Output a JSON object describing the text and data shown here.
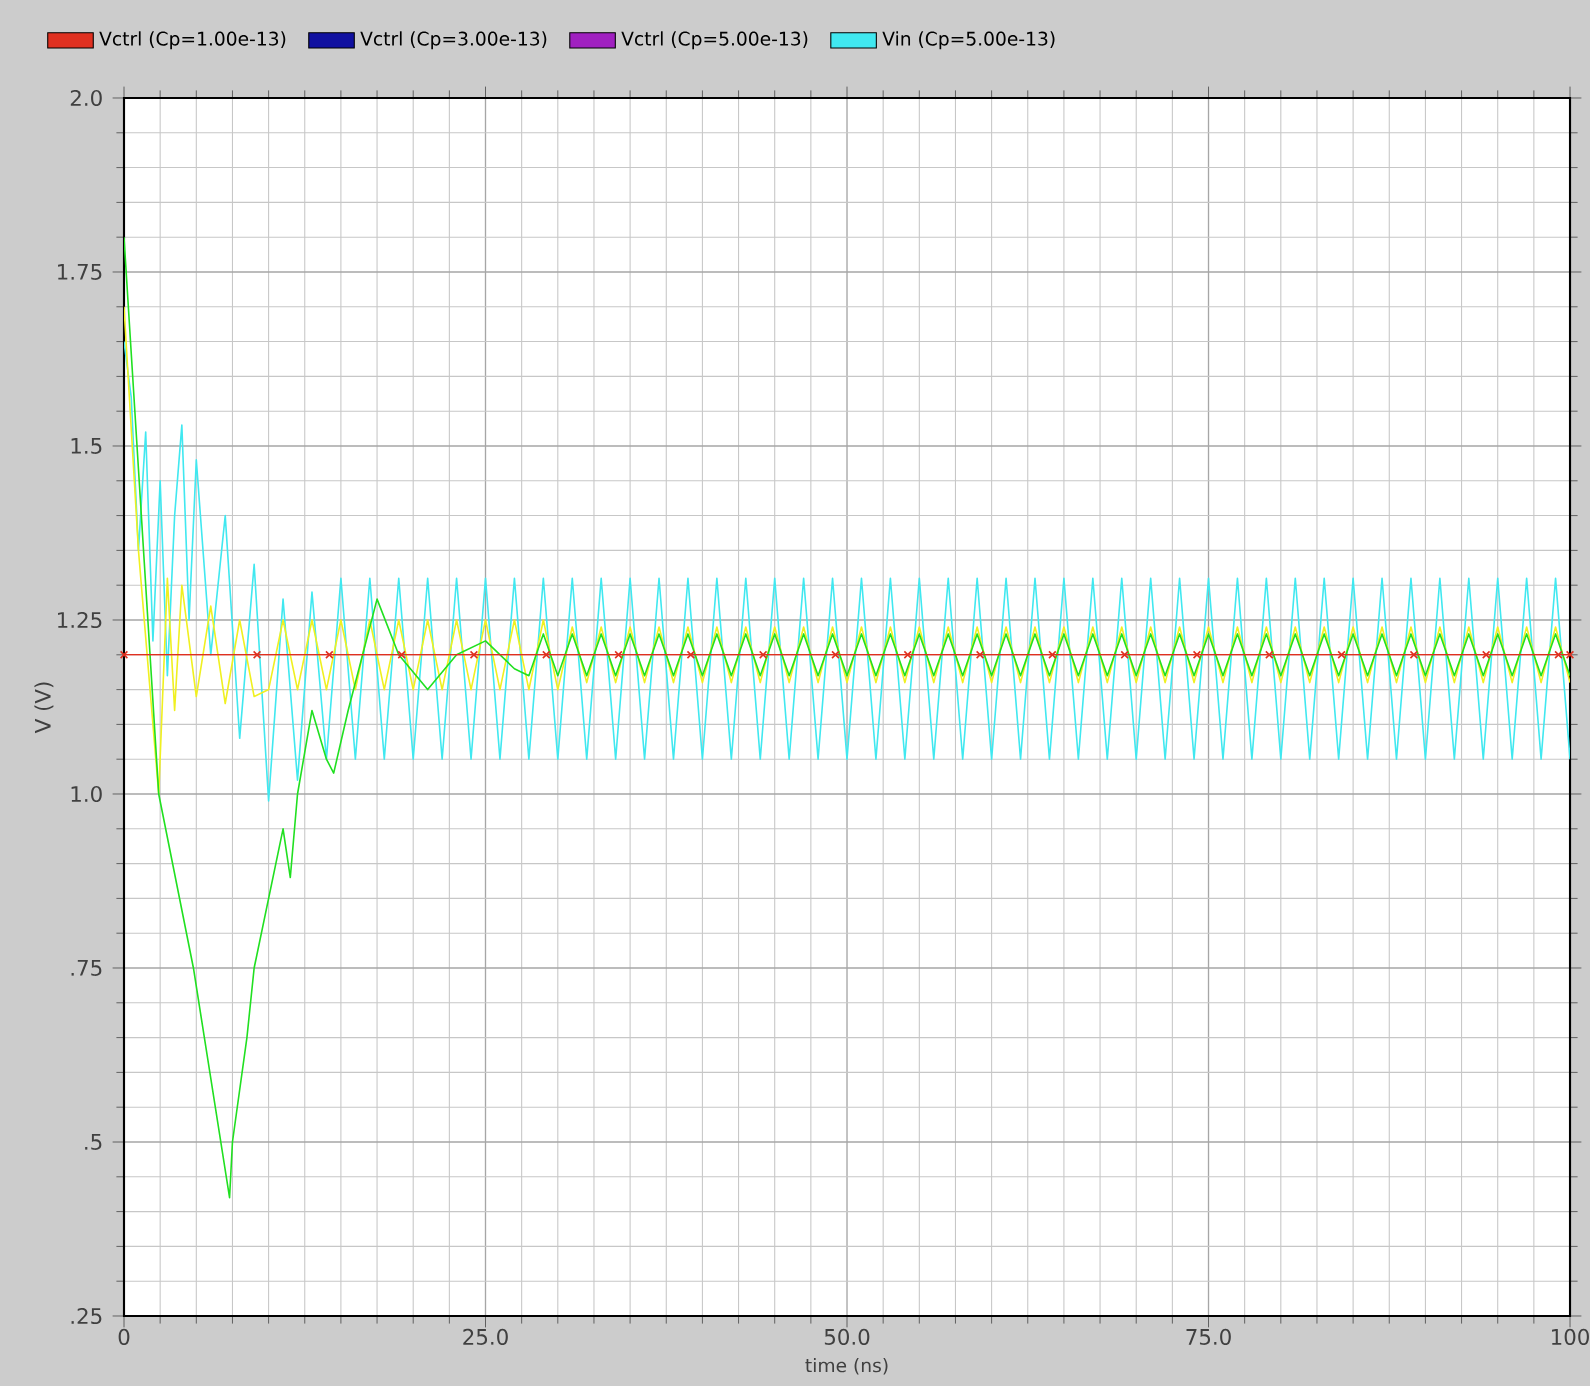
{
  "chart_data": {
    "type": "line",
    "xlabel": "time (ns)",
    "ylabel": "V (V)",
    "xlim": [
      0,
      100
    ],
    "ylim": [
      0.25,
      2.0
    ],
    "xticks": [
      0,
      {
        "value": 25,
        "label": "25.0"
      },
      {
        "value": 50,
        "label": "50.0"
      },
      {
        "value": 75,
        "label": "75.0"
      },
      100
    ],
    "yticks": [
      {
        "value": 0.25,
        "label": ".25"
      },
      {
        "value": 0.5,
        "label": ".5"
      },
      {
        "value": 0.75,
        "label": ".75"
      },
      {
        "value": 1.0,
        "label": "1.0"
      },
      1.25,
      1.5,
      1.75,
      {
        "value": 2.0,
        "label": "2.0"
      }
    ],
    "grid": true,
    "legend": "top",
    "line_style": "solid",
    "series": [
      {
        "name": "Vctrl (Cp=1.00e-13)",
        "color": "#e03020",
        "marker": "cross",
        "x": [
          0,
          9.2,
          14.2,
          19.2,
          24.2,
          29.2,
          34.2,
          39.2,
          44.2,
          49.2,
          54.2,
          59.2,
          64.2,
          69.2,
          74.2,
          79.2,
          84.2,
          89.2,
          94.2,
          99.2,
          100
        ],
        "values": [
          1.2,
          1.2,
          1.2,
          1.2,
          1.2,
          1.2,
          1.2,
          1.2,
          1.2,
          1.2,
          1.2,
          1.2,
          1.2,
          1.2,
          1.2,
          1.2,
          1.2,
          1.2,
          1.2,
          1.2,
          1.2
        ]
      },
      {
        "name": "Vctrl (Cp=3.00e-13)",
        "color": "#1010a0",
        "values": [
          null
        ]
      },
      {
        "name": "Vctrl (Cp=5.00e-13)",
        "color": "#a020c0",
        "values": [
          null
        ]
      },
      {
        "color": "#20e020",
        "x": [
          0,
          2.4,
          4.8,
          7.3,
          7.5,
          8.5,
          9,
          10,
          11,
          11.5,
          12,
          13,
          14,
          14.5,
          15.5,
          17.5,
          19,
          21,
          23,
          25,
          27,
          28,
          29,
          30,
          31,
          32,
          33,
          34,
          35,
          36,
          37,
          38,
          39,
          40,
          41,
          42,
          43,
          44,
          45,
          46,
          47,
          48,
          49,
          50,
          51,
          52,
          53,
          54,
          55,
          56,
          57,
          58,
          59,
          60,
          61,
          62,
          63,
          64,
          65,
          66,
          67,
          68,
          69,
          70,
          71,
          72,
          73,
          74,
          75,
          76,
          77,
          78,
          79,
          80,
          81,
          82,
          83,
          84,
          85,
          86,
          87,
          88,
          89,
          90,
          91,
          92,
          93,
          94,
          95,
          96,
          97,
          98,
          99,
          100
        ],
        "values": [
          1.8,
          1.0,
          0.75,
          0.42,
          0.5,
          0.65,
          0.75,
          0.85,
          0.95,
          0.88,
          1.0,
          1.12,
          1.05,
          1.03,
          1.12,
          1.28,
          1.2,
          1.15,
          1.2,
          1.22,
          1.18,
          1.17,
          1.23,
          1.17,
          1.23,
          1.17,
          1.23,
          1.17,
          1.23,
          1.17,
          1.23,
          1.17,
          1.23,
          1.17,
          1.23,
          1.17,
          1.23,
          1.17,
          1.23,
          1.17,
          1.23,
          1.17,
          1.23,
          1.17,
          1.23,
          1.17,
          1.23,
          1.17,
          1.23,
          1.17,
          1.23,
          1.17,
          1.23,
          1.17,
          1.23,
          1.17,
          1.23,
          1.17,
          1.23,
          1.17,
          1.23,
          1.17,
          1.23,
          1.17,
          1.23,
          1.17,
          1.23,
          1.17,
          1.23,
          1.17,
          1.23,
          1.17,
          1.23,
          1.17,
          1.23,
          1.17,
          1.23,
          1.17,
          1.23,
          1.17,
          1.23,
          1.17,
          1.23,
          1.17,
          1.23,
          1.17,
          1.23,
          1.17,
          1.23,
          1.17,
          1.23,
          1.17,
          1.23,
          1.17
        ]
      },
      {
        "color": "#f0f020",
        "x": [
          0,
          1,
          2.4,
          3,
          3.5,
          4,
          5,
          6,
          7,
          8,
          9,
          10,
          11,
          12,
          13,
          14,
          15,
          16,
          17,
          18,
          19,
          20,
          21,
          22,
          23,
          24,
          25,
          26,
          27,
          28,
          29,
          30,
          31,
          32,
          33,
          34,
          35,
          36,
          37,
          38,
          39,
          40,
          41,
          42,
          43,
          44,
          45,
          46,
          47,
          48,
          49,
          50,
          51,
          52,
          53,
          54,
          55,
          56,
          57,
          58,
          59,
          60,
          61,
          62,
          63,
          64,
          65,
          66,
          67,
          68,
          69,
          70,
          71,
          72,
          73,
          74,
          75,
          76,
          77,
          78,
          79,
          80,
          81,
          82,
          83,
          84,
          85,
          86,
          87,
          88,
          89,
          90,
          91,
          92,
          93,
          94,
          95,
          96,
          97,
          98,
          99,
          100
        ],
        "values": [
          1.7,
          1.35,
          1.0,
          1.31,
          1.12,
          1.3,
          1.14,
          1.27,
          1.13,
          1.25,
          1.14,
          1.15,
          1.25,
          1.15,
          1.25,
          1.15,
          1.25,
          1.15,
          1.25,
          1.15,
          1.25,
          1.15,
          1.25,
          1.15,
          1.25,
          1.15,
          1.25,
          1.15,
          1.25,
          1.15,
          1.25,
          1.15,
          1.24,
          1.16,
          1.24,
          1.16,
          1.24,
          1.16,
          1.24,
          1.16,
          1.24,
          1.16,
          1.24,
          1.16,
          1.24,
          1.16,
          1.24,
          1.16,
          1.24,
          1.16,
          1.24,
          1.16,
          1.24,
          1.16,
          1.24,
          1.16,
          1.24,
          1.16,
          1.24,
          1.16,
          1.24,
          1.16,
          1.24,
          1.16,
          1.24,
          1.16,
          1.24,
          1.16,
          1.24,
          1.16,
          1.24,
          1.16,
          1.24,
          1.16,
          1.24,
          1.16,
          1.24,
          1.16,
          1.24,
          1.16,
          1.24,
          1.16,
          1.24,
          1.16,
          1.24,
          1.16,
          1.24,
          1.16,
          1.24,
          1.16,
          1.24,
          1.16,
          1.24,
          1.16,
          1.24,
          1.16,
          1.24,
          1.16,
          1.24,
          1.16,
          1.24,
          1.16
        ]
      },
      {
        "name": "Vin (Cp=5.00e-13)",
        "color": "#40e8f0",
        "x": [
          0,
          0.5,
          1,
          1.5,
          2,
          2.5,
          3,
          3.5,
          4,
          4.5,
          5,
          6,
          7,
          8,
          9,
          10,
          11,
          12,
          13,
          14,
          15,
          16,
          17,
          18,
          19,
          20,
          21,
          22,
          23,
          24,
          25,
          26,
          27,
          28,
          29,
          30,
          31,
          32,
          33,
          34,
          35,
          36,
          37,
          38,
          39,
          40,
          41,
          42,
          43,
          44,
          45,
          46,
          47,
          48,
          49,
          50,
          51,
          52,
          53,
          54,
          55,
          56,
          57,
          58,
          59,
          60,
          61,
          62,
          63,
          64,
          65,
          66,
          67,
          68,
          69,
          70,
          71,
          72,
          73,
          74,
          75,
          76,
          77,
          78,
          79,
          80,
          81,
          82,
          83,
          84,
          85,
          86,
          87,
          88,
          89,
          90,
          91,
          92,
          93,
          94,
          95,
          96,
          97,
          98,
          99,
          100
        ],
        "values": [
          1.65,
          1.57,
          1.35,
          1.52,
          1.22,
          1.45,
          1.17,
          1.4,
          1.53,
          1.25,
          1.48,
          1.2,
          1.4,
          1.08,
          1.33,
          0.99,
          1.28,
          1.02,
          1.29,
          1.05,
          1.31,
          1.05,
          1.31,
          1.05,
          1.31,
          1.05,
          1.31,
          1.05,
          1.31,
          1.05,
          1.31,
          1.05,
          1.31,
          1.05,
          1.31,
          1.05,
          1.31,
          1.05,
          1.31,
          1.05,
          1.31,
          1.05,
          1.31,
          1.05,
          1.31,
          1.05,
          1.31,
          1.05,
          1.31,
          1.05,
          1.31,
          1.05,
          1.31,
          1.05,
          1.31,
          1.05,
          1.31,
          1.05,
          1.31,
          1.05,
          1.31,
          1.05,
          1.31,
          1.05,
          1.31,
          1.05,
          1.31,
          1.05,
          1.31,
          1.05,
          1.31,
          1.05,
          1.31,
          1.05,
          1.31,
          1.05,
          1.31,
          1.05,
          1.31,
          1.05,
          1.31,
          1.05,
          1.31,
          1.05,
          1.31,
          1.05,
          1.31,
          1.05,
          1.31,
          1.05,
          1.31,
          1.05,
          1.31,
          1.05,
          1.31,
          1.05,
          1.31,
          1.05,
          1.31,
          1.05,
          1.31,
          1.05,
          1.31,
          1.05,
          1.31,
          1.05
        ]
      }
    ]
  }
}
